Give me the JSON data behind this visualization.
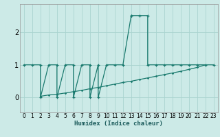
{
  "xlabel": "Humidex (Indice chaleur)",
  "bg_color": "#cceae7",
  "grid_color": "#aad4d0",
  "line_color": "#1a7a6e",
  "xlim": [
    -0.5,
    23.5
  ],
  "ylim": [
    -0.45,
    2.85
  ],
  "xticks": [
    0,
    1,
    2,
    3,
    4,
    5,
    6,
    7,
    8,
    9,
    10,
    11,
    12,
    13,
    14,
    15,
    16,
    17,
    18,
    19,
    20,
    21,
    22,
    23
  ],
  "yticks": [
    0,
    1,
    2
  ],
  "line1_x": [
    0,
    1,
    2,
    2,
    3,
    4,
    4,
    5,
    6,
    6,
    7,
    8,
    8,
    9,
    9,
    10,
    11,
    12,
    13,
    13,
    14,
    15,
    15,
    16,
    17,
    18,
    19,
    20,
    21,
    22,
    23
  ],
  "line1_y": [
    1,
    1,
    1,
    0,
    1,
    1,
    0,
    1,
    1,
    0,
    1,
    1,
    0,
    1,
    0,
    1,
    1,
    1,
    2.5,
    2.5,
    2.5,
    2.5,
    1,
    1,
    1,
    1,
    1,
    1,
    1,
    1,
    1
  ],
  "line2_x": [
    2,
    3,
    4,
    5,
    6,
    7,
    8,
    9,
    10,
    11,
    12,
    13,
    14,
    15,
    16,
    17,
    18,
    19,
    20,
    21,
    22
  ],
  "line2_y": [
    0.04,
    0.08,
    0.1,
    0.14,
    0.18,
    0.22,
    0.27,
    0.31,
    0.36,
    0.41,
    0.46,
    0.5,
    0.55,
    0.6,
    0.65,
    0.7,
    0.75,
    0.8,
    0.86,
    0.92,
    1.0
  ],
  "linewidth": 0.9,
  "marker1_size": 3.5,
  "marker2_size": 2.5
}
